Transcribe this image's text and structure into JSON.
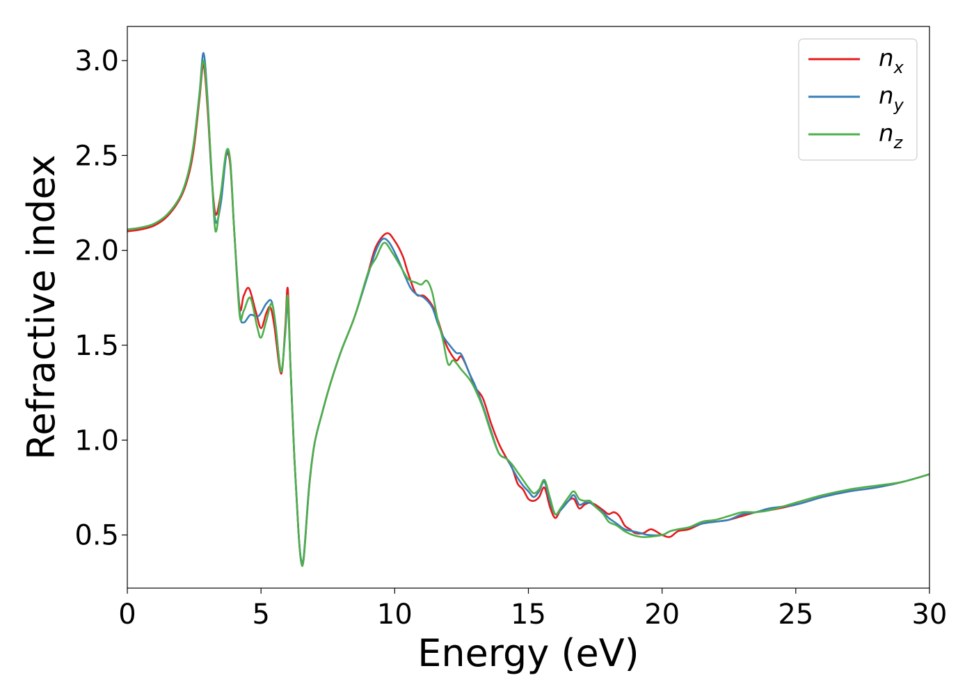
{
  "chart_data": {
    "type": "line",
    "xlabel": "Energy (eV)",
    "ylabel": "Refractive index",
    "xlim": [
      0,
      30
    ],
    "ylim": [
      0.22,
      3.18
    ],
    "xticks": [
      0,
      5,
      10,
      15,
      20,
      25,
      30
    ],
    "xtick_labels": [
      "0",
      "5",
      "10",
      "15",
      "20",
      "25",
      "30"
    ],
    "yticks": [
      0.5,
      1.0,
      1.5,
      2.0,
      2.5,
      3.0
    ],
    "ytick_labels": [
      "0.5",
      "1.0",
      "1.5",
      "2.0",
      "2.5",
      "3.0"
    ],
    "grid": false,
    "legend_position": "top-right",
    "series": [
      {
        "name": "n",
        "subscript": "x",
        "color": "#e41a1c",
        "x": [
          0,
          0.5,
          1.0,
          1.5,
          2.0,
          2.3,
          2.5,
          2.7,
          2.85,
          3.0,
          3.15,
          3.3,
          3.5,
          3.7,
          3.85,
          4.0,
          4.2,
          4.35,
          4.55,
          4.8,
          5.0,
          5.2,
          5.35,
          5.5,
          5.75,
          5.9,
          6.0,
          6.1,
          6.25,
          6.4,
          6.5,
          6.6,
          6.8,
          7.0,
          7.3,
          7.6,
          8.0,
          8.5,
          9.0,
          9.3,
          9.7,
          10.0,
          10.3,
          10.5,
          10.8,
          11.1,
          11.4,
          11.6,
          11.8,
          12.0,
          12.3,
          12.5,
          12.8,
          13.0,
          13.3,
          13.6,
          13.9,
          14.2,
          14.4,
          14.6,
          14.8,
          15.0,
          15.2,
          15.4,
          15.6,
          15.8,
          16.0,
          16.2,
          16.5,
          16.7,
          16.9,
          17.1,
          17.3,
          17.5,
          17.8,
          18.0,
          18.2,
          18.4,
          18.6,
          18.8,
          19.0,
          19.3,
          19.6,
          20.0,
          20.3,
          20.6,
          21.0,
          21.5,
          22.0,
          22.5,
          23.0,
          23.5,
          24.0,
          25.0,
          26.0,
          27.0,
          28.0,
          29.0,
          30.0
        ],
        "values": [
          2.1,
          2.11,
          2.13,
          2.18,
          2.28,
          2.4,
          2.55,
          2.8,
          2.98,
          2.75,
          2.4,
          2.19,
          2.3,
          2.5,
          2.45,
          2.1,
          1.7,
          1.76,
          1.8,
          1.68,
          1.59,
          1.67,
          1.7,
          1.6,
          1.35,
          1.58,
          1.8,
          1.4,
          0.9,
          0.52,
          0.36,
          0.38,
          0.75,
          0.98,
          1.15,
          1.3,
          1.47,
          1.65,
          1.88,
          2.02,
          2.09,
          2.05,
          1.97,
          1.88,
          1.77,
          1.76,
          1.71,
          1.64,
          1.55,
          1.48,
          1.42,
          1.44,
          1.35,
          1.28,
          1.22,
          1.09,
          0.98,
          0.9,
          0.85,
          0.77,
          0.74,
          0.69,
          0.68,
          0.7,
          0.75,
          0.65,
          0.59,
          0.63,
          0.68,
          0.69,
          0.64,
          0.66,
          0.67,
          0.66,
          0.63,
          0.61,
          0.62,
          0.6,
          0.55,
          0.53,
          0.51,
          0.51,
          0.53,
          0.5,
          0.49,
          0.52,
          0.53,
          0.56,
          0.57,
          0.58,
          0.6,
          0.62,
          0.63,
          0.66,
          0.7,
          0.73,
          0.75,
          0.78,
          0.82
        ]
      },
      {
        "name": "n",
        "subscript": "y",
        "color": "#377eb8",
        "x": [
          0,
          0.5,
          1.0,
          1.5,
          2.0,
          2.3,
          2.5,
          2.7,
          2.85,
          3.0,
          3.15,
          3.3,
          3.5,
          3.7,
          3.85,
          4.0,
          4.2,
          4.35,
          4.6,
          4.85,
          5.0,
          5.2,
          5.4,
          5.55,
          5.75,
          5.9,
          6.0,
          6.1,
          6.25,
          6.4,
          6.5,
          6.6,
          6.8,
          7.0,
          7.3,
          7.6,
          8.0,
          8.5,
          9.0,
          9.3,
          9.55,
          9.8,
          10.1,
          10.4,
          10.6,
          10.8,
          11.1,
          11.4,
          11.6,
          11.8,
          12.0,
          12.3,
          12.5,
          12.8,
          13.0,
          13.3,
          13.6,
          13.9,
          14.2,
          14.4,
          14.6,
          14.8,
          15.0,
          15.2,
          15.4,
          15.6,
          15.8,
          16.0,
          16.2,
          16.5,
          16.7,
          16.9,
          17.1,
          17.3,
          17.5,
          17.8,
          18.0,
          18.3,
          18.6,
          18.9,
          19.2,
          19.5,
          20.0,
          20.3,
          20.6,
          21.0,
          21.5,
          22.0,
          22.5,
          23.0,
          23.5,
          24.0,
          25.0,
          26.0,
          27.0,
          28.0,
          29.0,
          30.0
        ],
        "values": [
          2.11,
          2.12,
          2.14,
          2.19,
          2.29,
          2.42,
          2.58,
          2.83,
          3.04,
          2.8,
          2.4,
          2.15,
          2.25,
          2.5,
          2.47,
          2.1,
          1.68,
          1.62,
          1.66,
          1.65,
          1.67,
          1.72,
          1.73,
          1.6,
          1.36,
          1.55,
          1.72,
          1.4,
          0.9,
          0.52,
          0.37,
          0.39,
          0.76,
          0.98,
          1.15,
          1.3,
          1.47,
          1.65,
          1.87,
          2.0,
          2.06,
          2.04,
          1.96,
          1.86,
          1.8,
          1.77,
          1.75,
          1.7,
          1.62,
          1.55,
          1.51,
          1.46,
          1.45,
          1.35,
          1.29,
          1.18,
          1.05,
          0.93,
          0.9,
          0.85,
          0.8,
          0.76,
          0.73,
          0.7,
          0.73,
          0.78,
          0.68,
          0.61,
          0.63,
          0.68,
          0.71,
          0.66,
          0.67,
          0.67,
          0.65,
          0.62,
          0.59,
          0.56,
          0.53,
          0.52,
          0.51,
          0.5,
          0.5,
          0.52,
          0.53,
          0.54,
          0.56,
          0.57,
          0.58,
          0.61,
          0.62,
          0.64,
          0.66,
          0.7,
          0.73,
          0.75,
          0.78,
          0.82
        ]
      },
      {
        "name": "n",
        "subscript": "z",
        "color": "#4daf4a",
        "x": [
          0,
          0.5,
          1.0,
          1.5,
          2.0,
          2.3,
          2.5,
          2.7,
          2.85,
          3.0,
          3.15,
          3.3,
          3.5,
          3.7,
          3.85,
          4.0,
          4.2,
          4.35,
          4.6,
          4.85,
          5.0,
          5.2,
          5.4,
          5.55,
          5.75,
          5.9,
          6.0,
          6.1,
          6.25,
          6.4,
          6.5,
          6.6,
          6.8,
          7.0,
          7.3,
          7.6,
          8.0,
          8.5,
          9.0,
          9.3,
          9.6,
          9.9,
          10.2,
          10.5,
          10.8,
          11.0,
          11.2,
          11.4,
          11.6,
          11.8,
          12.0,
          12.2,
          12.5,
          12.8,
          13.0,
          13.3,
          13.6,
          13.9,
          14.2,
          14.4,
          14.6,
          14.8,
          15.0,
          15.2,
          15.4,
          15.6,
          15.8,
          16.0,
          16.2,
          16.5,
          16.7,
          16.9,
          17.1,
          17.3,
          17.5,
          17.8,
          18.0,
          18.3,
          18.6,
          18.9,
          19.2,
          19.5,
          20.0,
          20.3,
          20.6,
          21.0,
          21.5,
          22.0,
          22.5,
          23.0,
          23.5,
          24.0,
          25.0,
          26.0,
          27.0,
          28.0,
          29.0,
          30.0
        ],
        "values": [
          2.11,
          2.12,
          2.14,
          2.19,
          2.29,
          2.42,
          2.58,
          2.82,
          3.0,
          2.78,
          2.42,
          2.1,
          2.3,
          2.52,
          2.47,
          2.1,
          1.66,
          1.68,
          1.75,
          1.6,
          1.54,
          1.63,
          1.72,
          1.6,
          1.36,
          1.56,
          1.76,
          1.4,
          0.9,
          0.52,
          0.36,
          0.38,
          0.75,
          0.98,
          1.15,
          1.3,
          1.47,
          1.65,
          1.88,
          1.96,
          2.04,
          1.99,
          1.92,
          1.85,
          1.83,
          1.82,
          1.84,
          1.78,
          1.64,
          1.53,
          1.4,
          1.42,
          1.37,
          1.32,
          1.27,
          1.17,
          1.04,
          0.93,
          0.9,
          0.87,
          0.83,
          0.79,
          0.75,
          0.72,
          0.74,
          0.79,
          0.7,
          0.61,
          0.64,
          0.7,
          0.73,
          0.69,
          0.68,
          0.68,
          0.65,
          0.61,
          0.57,
          0.55,
          0.52,
          0.5,
          0.49,
          0.49,
          0.5,
          0.52,
          0.53,
          0.54,
          0.57,
          0.58,
          0.6,
          0.62,
          0.62,
          0.63,
          0.67,
          0.71,
          0.74,
          0.76,
          0.78,
          0.82
        ]
      }
    ]
  }
}
